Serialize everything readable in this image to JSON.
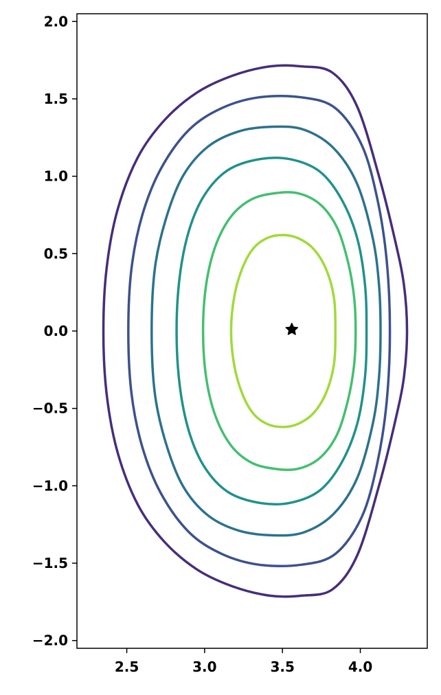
{
  "chart_data": {
    "type": "line",
    "title": "",
    "xlabel": "",
    "ylabel": "",
    "xlim": [
      2.18,
      4.43
    ],
    "ylim": [
      -2.05,
      2.05
    ],
    "x_ticks": [
      {
        "value": 2.5,
        "label": "2.5"
      },
      {
        "value": 3.0,
        "label": "3.0"
      },
      {
        "value": 3.5,
        "label": "3.5"
      },
      {
        "value": 4.0,
        "label": "4.0"
      }
    ],
    "y_ticks": [
      {
        "value": 2.0,
        "label": "2.0"
      },
      {
        "value": 1.5,
        "label": "1.5"
      },
      {
        "value": 1.0,
        "label": "1.0"
      },
      {
        "value": 0.5,
        "label": "0.5"
      },
      {
        "value": 0.0,
        "label": "0.0"
      },
      {
        "value": -0.5,
        "label": "−0.5"
      },
      {
        "value": -1.0,
        "label": "−1.0"
      },
      {
        "value": -1.5,
        "label": "−1.5"
      },
      {
        "value": -2.0,
        "label": "−2.0"
      }
    ],
    "grid": false,
    "legend": "none",
    "series": [
      {
        "color": "#472d7b",
        "points": [
          [
            2.35,
            0.0
          ],
          [
            2.37,
            0.4
          ],
          [
            2.44,
            0.78
          ],
          [
            2.57,
            1.12
          ],
          [
            2.74,
            1.36
          ],
          [
            2.95,
            1.54
          ],
          [
            3.18,
            1.65
          ],
          [
            3.42,
            1.71
          ],
          [
            3.62,
            1.71
          ],
          [
            3.82,
            1.67
          ],
          [
            3.98,
            1.45
          ],
          [
            4.12,
            1.0
          ],
          [
            4.22,
            0.6
          ],
          [
            4.28,
            0.3
          ],
          [
            4.3,
            0.0
          ],
          [
            4.28,
            -0.3
          ],
          [
            4.22,
            -0.6
          ],
          [
            4.12,
            -1.0
          ],
          [
            3.98,
            -1.45
          ],
          [
            3.82,
            -1.67
          ],
          [
            3.62,
            -1.71
          ],
          [
            3.42,
            -1.71
          ],
          [
            3.18,
            -1.65
          ],
          [
            2.95,
            -1.54
          ],
          [
            2.74,
            -1.36
          ],
          [
            2.57,
            -1.12
          ],
          [
            2.44,
            -0.78
          ],
          [
            2.37,
            -0.4
          ]
        ]
      },
      {
        "color": "#3b528b",
        "points": [
          [
            2.51,
            0.0
          ],
          [
            2.53,
            0.4
          ],
          [
            2.6,
            0.75
          ],
          [
            2.72,
            1.05
          ],
          [
            2.9,
            1.3
          ],
          [
            3.11,
            1.44
          ],
          [
            3.35,
            1.51
          ],
          [
            3.62,
            1.51
          ],
          [
            3.84,
            1.44
          ],
          [
            4.01,
            1.2
          ],
          [
            4.11,
            0.85
          ],
          [
            4.17,
            0.45
          ],
          [
            4.19,
            0.0
          ],
          [
            4.17,
            -0.45
          ],
          [
            4.11,
            -0.85
          ],
          [
            4.01,
            -1.2
          ],
          [
            3.84,
            -1.44
          ],
          [
            3.62,
            -1.51
          ],
          [
            3.35,
            -1.51
          ],
          [
            3.11,
            -1.44
          ],
          [
            2.9,
            -1.3
          ],
          [
            2.72,
            -1.05
          ],
          [
            2.6,
            -0.75
          ],
          [
            2.53,
            -0.4
          ]
        ]
      },
      {
        "color": "#2c728e",
        "points": [
          [
            2.66,
            0.0
          ],
          [
            2.68,
            0.4
          ],
          [
            2.75,
            0.72
          ],
          [
            2.86,
            1.0
          ],
          [
            3.02,
            1.19
          ],
          [
            3.22,
            1.29
          ],
          [
            3.44,
            1.32
          ],
          [
            3.64,
            1.3
          ],
          [
            3.83,
            1.18
          ],
          [
            3.98,
            0.95
          ],
          [
            4.08,
            0.6
          ],
          [
            4.12,
            0.3
          ],
          [
            4.13,
            0.0
          ],
          [
            4.12,
            -0.3
          ],
          [
            4.08,
            -0.6
          ],
          [
            3.98,
            -0.95
          ],
          [
            3.83,
            -1.18
          ],
          [
            3.64,
            -1.3
          ],
          [
            3.44,
            -1.32
          ],
          [
            3.22,
            -1.29
          ],
          [
            3.02,
            -1.19
          ],
          [
            2.86,
            -1.0
          ],
          [
            2.75,
            -0.72
          ],
          [
            2.68,
            -0.4
          ]
        ]
      },
      {
        "color": "#21918c",
        "points": [
          [
            2.82,
            0.0
          ],
          [
            2.84,
            0.35
          ],
          [
            2.9,
            0.65
          ],
          [
            3.0,
            0.88
          ],
          [
            3.15,
            1.04
          ],
          [
            3.35,
            1.11
          ],
          [
            3.55,
            1.11
          ],
          [
            3.74,
            1.03
          ],
          [
            3.88,
            0.85
          ],
          [
            3.98,
            0.6
          ],
          [
            4.03,
            0.3
          ],
          [
            4.04,
            0.0
          ],
          [
            4.03,
            -0.3
          ],
          [
            3.98,
            -0.6
          ],
          [
            3.88,
            -0.85
          ],
          [
            3.74,
            -1.03
          ],
          [
            3.55,
            -1.11
          ],
          [
            3.35,
            -1.11
          ],
          [
            3.15,
            -1.04
          ],
          [
            3.0,
            -0.88
          ],
          [
            2.9,
            -0.65
          ],
          [
            2.84,
            -0.35
          ]
        ]
      },
      {
        "color": "#44bf70",
        "points": [
          [
            2.99,
            0.0
          ],
          [
            3.01,
            0.3
          ],
          [
            3.07,
            0.55
          ],
          [
            3.17,
            0.74
          ],
          [
            3.3,
            0.85
          ],
          [
            3.45,
            0.89
          ],
          [
            3.6,
            0.89
          ],
          [
            3.74,
            0.82
          ],
          [
            3.85,
            0.67
          ],
          [
            3.92,
            0.45
          ],
          [
            3.96,
            0.22
          ],
          [
            3.97,
            0.0
          ],
          [
            3.96,
            -0.22
          ],
          [
            3.92,
            -0.45
          ],
          [
            3.85,
            -0.67
          ],
          [
            3.74,
            -0.82
          ],
          [
            3.6,
            -0.89
          ],
          [
            3.45,
            -0.89
          ],
          [
            3.3,
            -0.85
          ],
          [
            3.17,
            -0.74
          ],
          [
            3.07,
            -0.55
          ],
          [
            3.01,
            -0.3
          ]
        ]
      },
      {
        "color": "#a0da39",
        "points": [
          [
            3.17,
            0.0
          ],
          [
            3.19,
            0.22
          ],
          [
            3.24,
            0.4
          ],
          [
            3.31,
            0.53
          ],
          [
            3.4,
            0.6
          ],
          [
            3.5,
            0.62
          ],
          [
            3.6,
            0.6
          ],
          [
            3.7,
            0.53
          ],
          [
            3.78,
            0.4
          ],
          [
            3.83,
            0.22
          ],
          [
            3.84,
            0.0
          ],
          [
            3.83,
            -0.22
          ],
          [
            3.78,
            -0.4
          ],
          [
            3.7,
            -0.53
          ],
          [
            3.6,
            -0.6
          ],
          [
            3.5,
            -0.62
          ],
          [
            3.4,
            -0.6
          ],
          [
            3.31,
            -0.53
          ],
          [
            3.24,
            -0.4
          ],
          [
            3.19,
            -0.22
          ]
        ]
      }
    ],
    "axis_marker": {
      "x": 3.56,
      "y": 0.01,
      "color": "#000000"
    }
  }
}
